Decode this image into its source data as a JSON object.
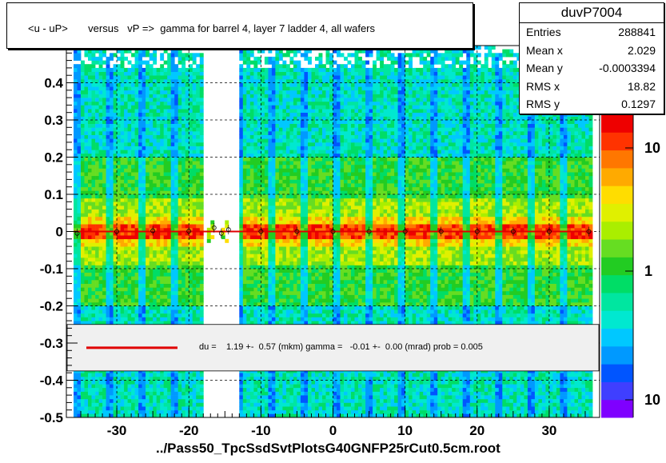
{
  "title": "<u - uP>       versus   vP =>  gamma for barrel 4, layer 7 ladder 4, all wafers",
  "stats": {
    "name": "duvP7004",
    "rows": [
      {
        "key": "Entries",
        "value": "288841"
      },
      {
        "key": "Mean x",
        "value": "2.029"
      },
      {
        "key": "Mean y",
        "value": "-0.0003394"
      },
      {
        "key": "RMS x",
        "value": "18.82"
      },
      {
        "key": "RMS y",
        "value": "0.1297"
      }
    ]
  },
  "footer": "../Pass50_TpcSsdSvtPlotsG40GNFP25rCut0.5cm.root",
  "fit_legend": "du =    1.19 +-  0.57 (mkm) gamma =   -0.01 +-  0.00 (mrad) prob = 0.005",
  "colors": {
    "fit_line": "#e00000",
    "legend_bg": "#f0f0f0",
    "background": "#ffffff"
  },
  "chart_data": {
    "type": "heatmap",
    "xlim": [
      -37,
      37
    ],
    "ylim": [
      -0.5,
      0.5
    ],
    "x_ticks": [
      -30,
      -20,
      -10,
      0,
      10,
      20,
      30
    ],
    "y_ticks": [
      -0.5,
      -0.4,
      -0.3,
      -0.2,
      -0.1,
      0,
      0.1,
      0.2,
      0.3,
      0.4
    ],
    "x_tick_labels": [
      "-30",
      "-20",
      "-10",
      "0",
      "10",
      "20",
      "30"
    ],
    "y_tick_labels": [
      "-0.5",
      "-0.4",
      "-0.3",
      "-0.2",
      "-0.1",
      "0",
      "0.1",
      "0.2",
      "0.3",
      "0.4"
    ],
    "colorbar_labels": [
      "10",
      "1",
      "10"
    ],
    "data_x_range": [
      -36,
      36
    ],
    "empty_x_band": [
      -18,
      -13
    ],
    "ridge_y": 0.0,
    "profile_points": [
      [
        -35.5,
        -0.005
      ],
      [
        -30,
        0.0
      ],
      [
        -25,
        0.002
      ],
      [
        -20,
        0.001
      ],
      [
        -16.5,
        0.01
      ],
      [
        -15.5,
        -0.005
      ],
      [
        -14.5,
        0.005
      ],
      [
        -10,
        0.0
      ],
      [
        -5,
        0.0
      ],
      [
        0,
        0.0
      ],
      [
        5,
        0.0
      ],
      [
        10,
        0.0
      ],
      [
        15,
        0.0
      ],
      [
        20,
        0.0
      ],
      [
        25,
        0.0
      ],
      [
        30,
        0.0
      ],
      [
        35.5,
        0.0
      ]
    ],
    "fit_line": {
      "du_mkm": 1.19,
      "du_err": 0.57,
      "gamma_mrad": -0.01,
      "gamma_err": 0.0,
      "prob": 0.005
    },
    "grid": true
  }
}
